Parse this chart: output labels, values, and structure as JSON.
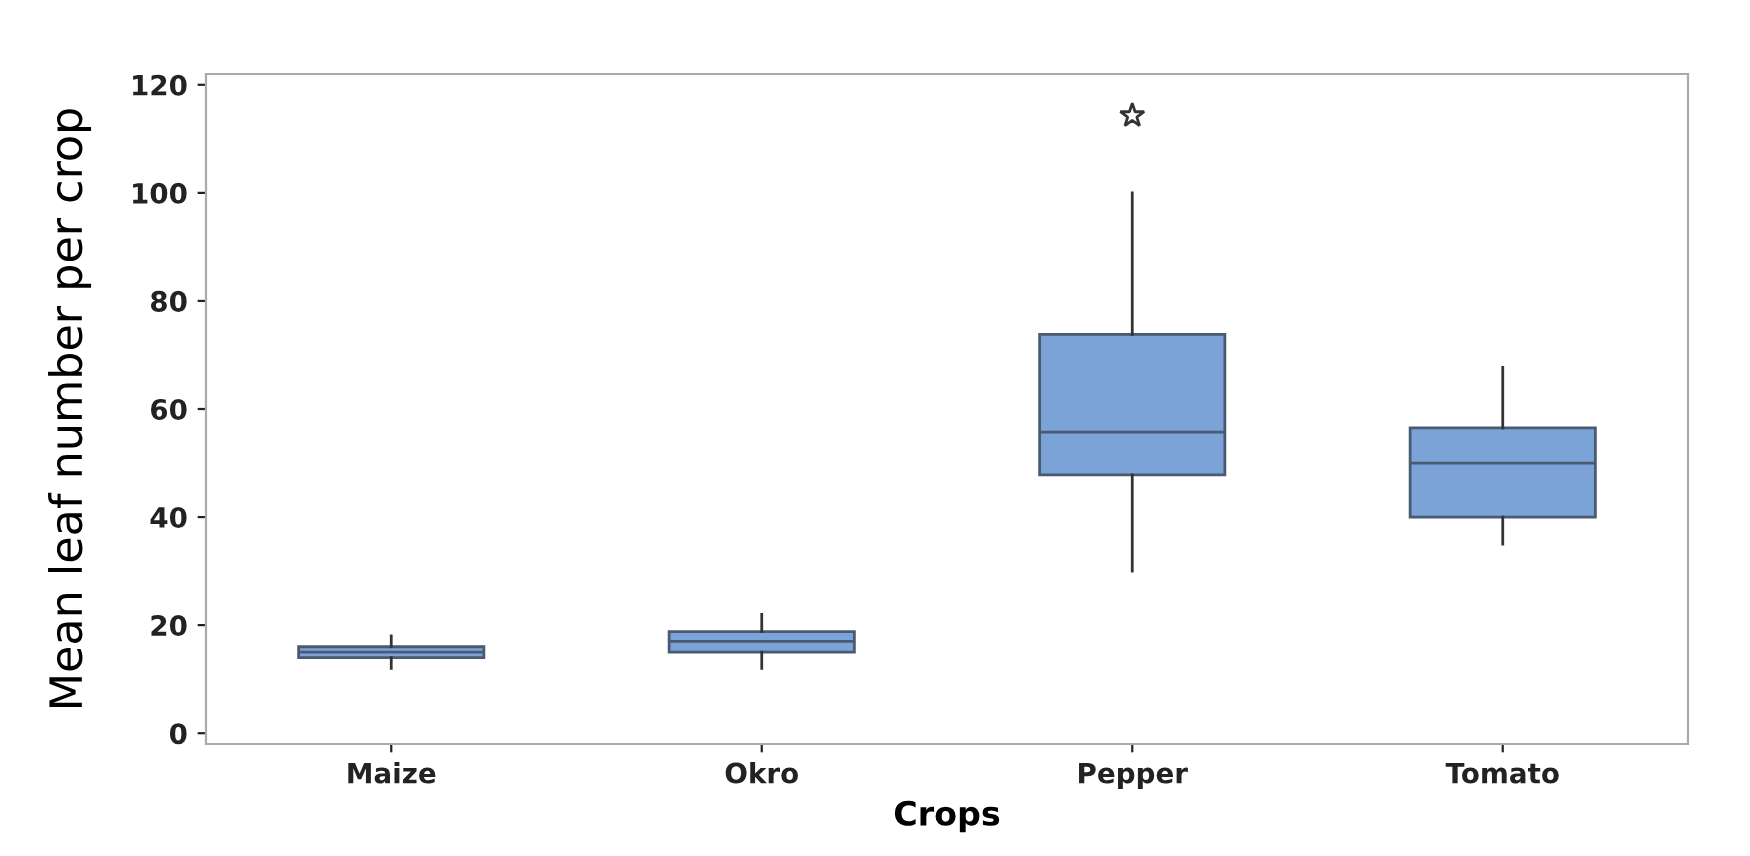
{
  "chart_data": {
    "type": "box",
    "xlabel": "Crops",
    "ylabel": "Mean leaf number per crop",
    "categories": [
      "Maize",
      "Okro",
      "Pepper",
      "Tomato"
    ],
    "color": "#7ba3d8",
    "boxes": [
      {
        "low": 12,
        "q1": 14,
        "median": 15,
        "q3": 16,
        "high": 18
      },
      {
        "low": 12,
        "q1": 15,
        "median": 17,
        "q3": 18.8,
        "high": 22
      },
      {
        "low": 30,
        "q1": 47.8,
        "median": 55.7,
        "q3": 73.8,
        "high": 100,
        "outliers": [
          114.3
        ]
      },
      {
        "low": 35,
        "q1": 40,
        "median": 50,
        "q3": 56.5,
        "high": 67.7
      }
    ],
    "ylim": [
      -2,
      122
    ],
    "yticks": [
      0,
      20,
      40,
      60,
      80,
      100,
      120
    ],
    "grid": false,
    "legend": false
  }
}
